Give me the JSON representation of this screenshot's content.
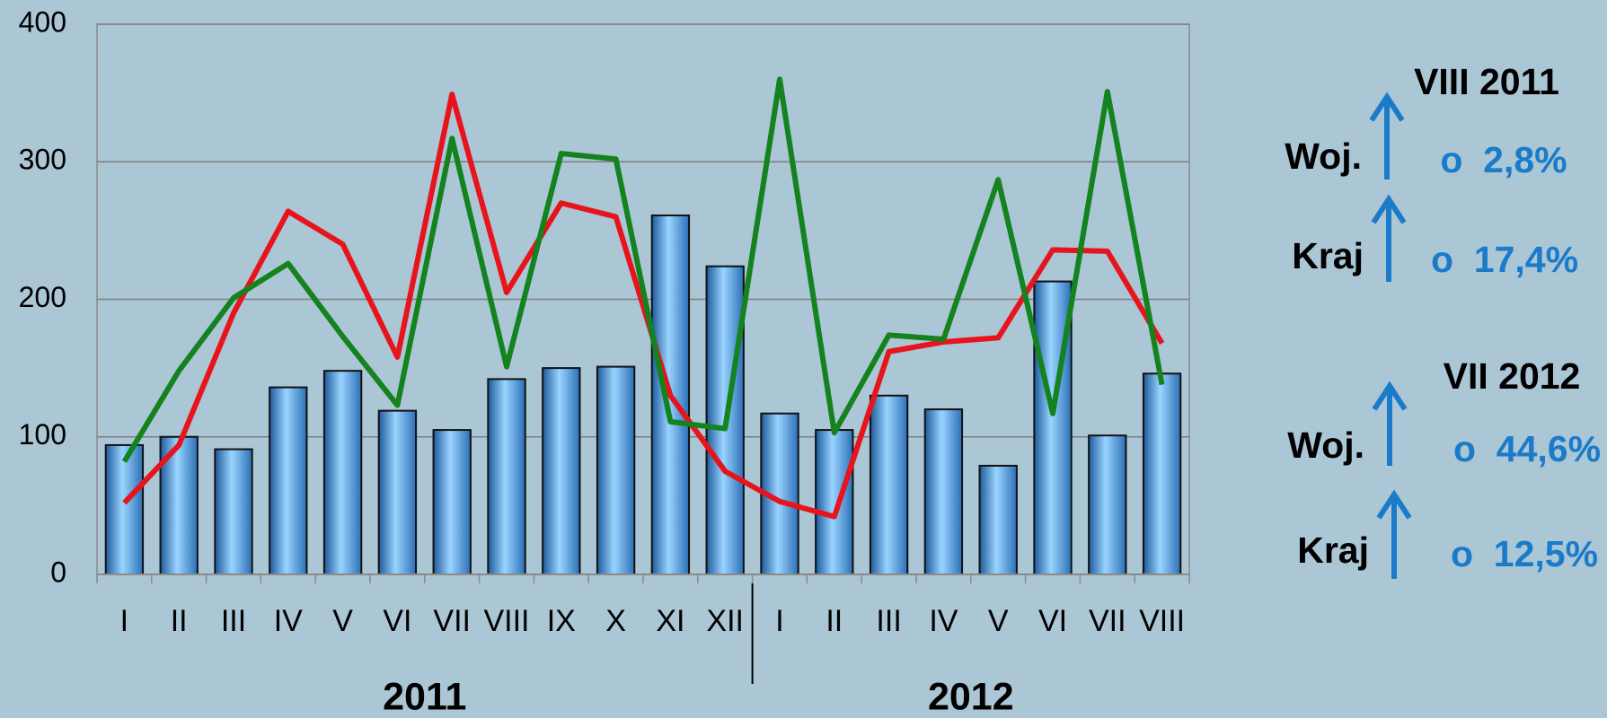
{
  "chart_data": {
    "type": "bar-line",
    "groups": [
      {
        "name": "2011",
        "categories": [
          "I",
          "II",
          "III",
          "IV",
          "V",
          "VI",
          "VII",
          "VIII",
          "IX",
          "X",
          "XI",
          "XII"
        ]
      },
      {
        "name": "2012",
        "categories": [
          "I",
          "II",
          "III",
          "IV",
          "V",
          "VI",
          "VII",
          "VIII"
        ]
      }
    ],
    "series": [
      {
        "kind": "bar",
        "color": "#3a8ad6",
        "values": [
          94,
          100,
          91,
          136,
          148,
          119,
          105,
          142,
          150,
          151,
          261,
          224,
          117,
          105,
          130,
          120,
          79,
          213,
          101,
          146
        ]
      },
      {
        "kind": "line",
        "color": "#e8141b",
        "values": [
          52,
          94,
          190,
          264,
          240,
          158,
          349,
          205,
          270,
          260,
          130,
          75,
          53,
          42,
          162,
          169,
          172,
          236,
          235,
          168
        ]
      },
      {
        "kind": "line",
        "color": "#14821e",
        "values": [
          82,
          148,
          201,
          226,
          173,
          123,
          317,
          151,
          306,
          302,
          111,
          106,
          360,
          103,
          174,
          171,
          287,
          117,
          351,
          138
        ]
      }
    ],
    "ylim": [
      0,
      400
    ],
    "yticks": [
      0,
      100,
      200,
      300,
      400
    ],
    "grid": true,
    "annotations": [
      {
        "period": "VIII 2011",
        "rows": [
          {
            "label": "Woj.",
            "change": "o  2,8%"
          },
          {
            "label": "Kraj",
            "change": "o  17,4%"
          }
        ]
      },
      {
        "period": "VII 2012",
        "rows": [
          {
            "label": "Woj.",
            "change": "o  44,6%"
          },
          {
            "label": "Kraj",
            "change": "o  12,5%"
          }
        ]
      }
    ]
  }
}
